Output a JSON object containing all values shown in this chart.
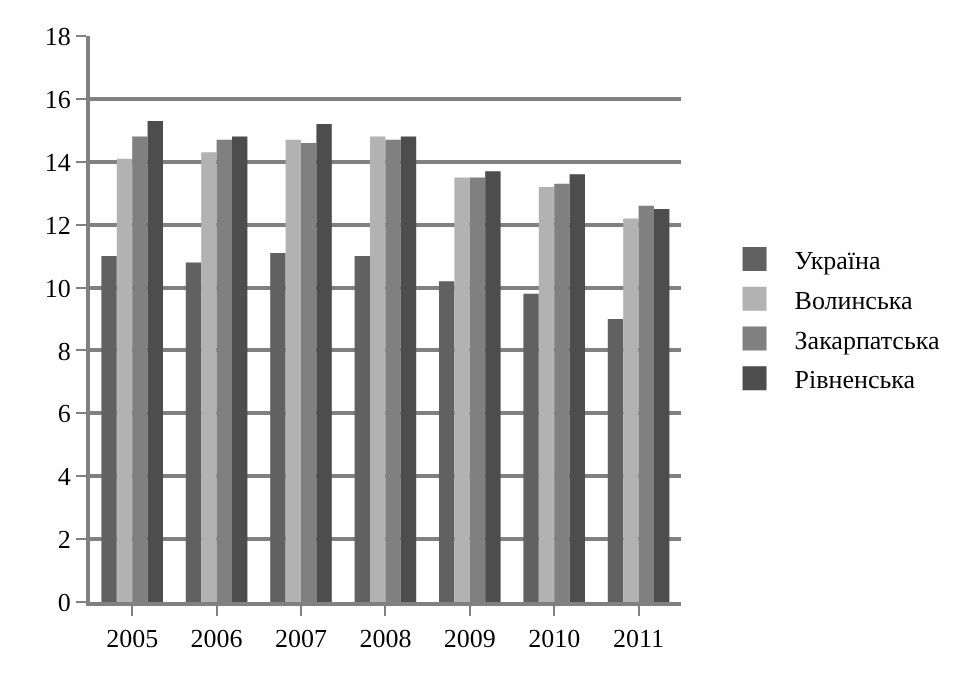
{
  "chart_data": {
    "type": "bar",
    "categories": [
      "2005",
      "2006",
      "2007",
      "2008",
      "2009",
      "2010",
      "2011"
    ],
    "series": [
      {
        "name": "Україна",
        "color": "#616161",
        "values": [
          11.0,
          10.8,
          11.1,
          11.0,
          10.2,
          9.8,
          9.0
        ]
      },
      {
        "name": "Волинська",
        "color": "#b2b2b2",
        "values": [
          14.1,
          14.3,
          14.7,
          14.8,
          13.5,
          13.2,
          12.2
        ]
      },
      {
        "name": "Закарпатська",
        "color": "#808080",
        "values": [
          14.8,
          14.7,
          14.6,
          14.7,
          13.5,
          13.3,
          12.6
        ]
      },
      {
        "name": "Рівненська",
        "color": "#4d4d4d",
        "values": [
          15.3,
          14.8,
          15.2,
          14.8,
          13.7,
          13.6,
          12.5
        ]
      }
    ],
    "ylim": [
      0,
      18
    ],
    "yticks": [
      0,
      2,
      4,
      6,
      8,
      10,
      12,
      14,
      16,
      18
    ],
    "grid": "y",
    "legend": "right"
  }
}
